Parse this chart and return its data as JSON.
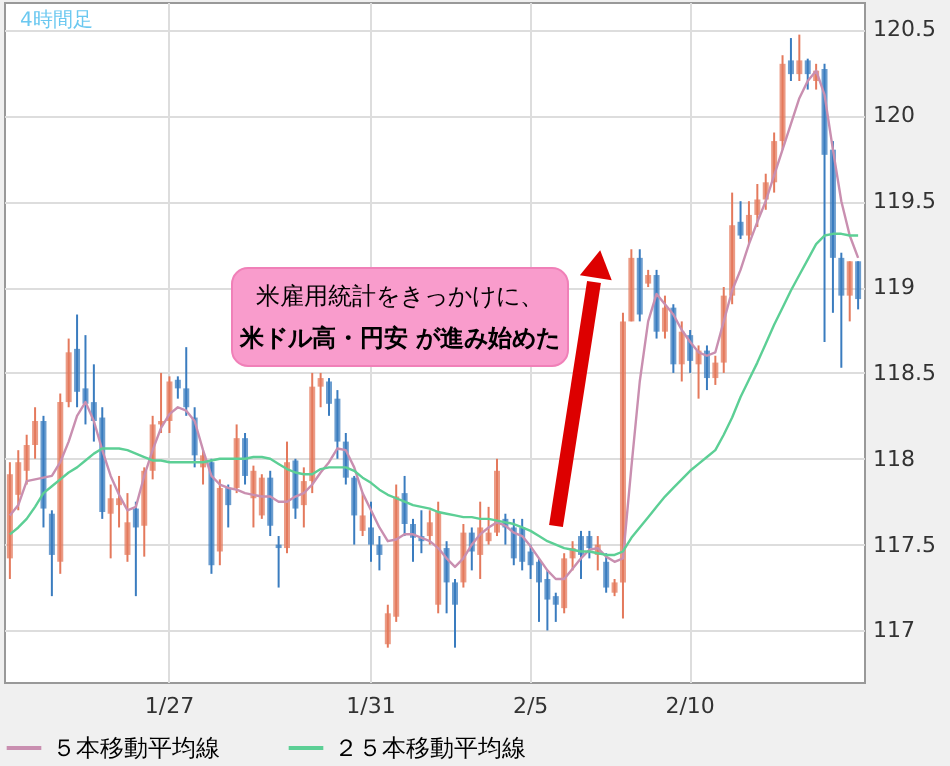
{
  "chart_data": {
    "type": "candlestick",
    "title": "4時間足",
    "categories": [
      null,
      null,
      null,
      null,
      null,
      null,
      null,
      null,
      null,
      null,
      null,
      null,
      null,
      null,
      null,
      null,
      null,
      null,
      null,
      "1/27",
      null,
      null,
      null,
      null,
      null,
      null,
      null,
      null,
      null,
      null,
      null,
      null,
      null,
      null,
      null,
      null,
      null,
      null,
      null,
      null,
      null,
      null,
      null,
      "1/31",
      null,
      null,
      null,
      null,
      null,
      null,
      null,
      null,
      null,
      null,
      null,
      null,
      null,
      null,
      null,
      null,
      null,
      null,
      "2/5",
      null,
      null,
      null,
      null,
      null,
      null,
      null,
      null,
      null,
      null,
      null,
      null,
      null,
      null,
      null,
      null,
      null,
      null,
      "2/10",
      null,
      null,
      null,
      null,
      null,
      null,
      null,
      null,
      null,
      null,
      null,
      null,
      null,
      null,
      null,
      null,
      null,
      null,
      null,
      null
    ],
    "ohlc": [
      [
        117.42,
        117.98,
        117.3,
        117.91
      ],
      [
        117.79,
        118.05,
        117.7,
        117.98
      ],
      [
        117.93,
        118.14,
        117.85,
        118.08
      ],
      [
        118.08,
        118.3,
        118.0,
        118.22
      ],
      [
        118.22,
        118.25,
        117.6,
        117.71
      ],
      [
        117.68,
        117.7,
        117.2,
        117.44
      ],
      [
        117.4,
        118.38,
        117.33,
        118.33
      ],
      [
        118.33,
        118.7,
        118.3,
        118.62
      ],
      [
        118.64,
        118.84,
        118.3,
        118.39
      ],
      [
        118.41,
        118.72,
        118.2,
        118.32
      ],
      [
        118.33,
        118.55,
        118.1,
        118.22
      ],
      [
        118.24,
        118.3,
        117.65,
        117.69
      ],
      [
        117.68,
        117.85,
        117.42,
        117.77
      ],
      [
        117.73,
        117.9,
        117.6,
        117.77
      ],
      [
        117.44,
        117.8,
        117.4,
        117.63
      ],
      [
        117.71,
        117.75,
        117.2,
        117.6
      ],
      [
        117.61,
        117.95,
        117.43,
        117.93
      ],
      [
        117.93,
        118.25,
        117.88,
        118.2
      ],
      [
        118.2,
        118.5,
        118.15,
        118.22
      ],
      [
        118.22,
        118.48,
        118.15,
        118.45
      ],
      [
        118.46,
        118.48,
        118.35,
        118.41
      ],
      [
        118.41,
        118.65,
        118.25,
        118.3
      ],
      [
        118.24,
        118.3,
        117.95,
        118.02
      ],
      [
        117.95,
        118.05,
        117.85,
        118.02
      ],
      [
        117.98,
        118.0,
        117.33,
        117.38
      ],
      [
        117.46,
        117.88,
        117.38,
        117.83
      ],
      [
        117.83,
        117.85,
        117.6,
        117.73
      ],
      [
        117.83,
        118.2,
        117.8,
        118.12
      ],
      [
        118.12,
        118.15,
        117.85,
        117.9
      ],
      [
        117.77,
        117.96,
        117.6,
        117.93
      ],
      [
        117.67,
        117.91,
        117.65,
        117.89
      ],
      [
        117.89,
        117.93,
        117.55,
        117.61
      ],
      [
        117.5,
        117.55,
        117.25,
        117.48
      ],
      [
        117.48,
        118.1,
        117.45,
        117.98
      ],
      [
        117.99,
        118.0,
        117.65,
        117.71
      ],
      [
        117.73,
        117.95,
        117.6,
        117.87
      ],
      [
        117.87,
        118.5,
        117.8,
        118.42
      ],
      [
        118.42,
        118.5,
        118.3,
        118.47
      ],
      [
        118.45,
        118.47,
        118.25,
        118.32
      ],
      [
        118.35,
        118.4,
        118.0,
        118.1
      ],
      [
        118.1,
        118.15,
        117.85,
        117.89
      ],
      [
        117.89,
        117.9,
        117.5,
        117.67
      ],
      [
        117.58,
        117.8,
        117.55,
        117.67
      ],
      [
        117.6,
        117.75,
        117.4,
        117.5
      ],
      [
        117.5,
        117.55,
        117.35,
        117.44
      ],
      [
        116.92,
        117.15,
        116.9,
        117.1
      ],
      [
        117.08,
        117.85,
        117.05,
        117.78
      ],
      [
        117.8,
        117.9,
        117.55,
        117.62
      ],
      [
        117.62,
        117.65,
        117.4,
        117.54
      ],
      [
        117.55,
        117.7,
        117.45,
        117.52
      ],
      [
        117.55,
        117.7,
        117.5,
        117.63
      ],
      [
        117.15,
        117.75,
        117.1,
        117.69
      ],
      [
        117.48,
        117.52,
        117.1,
        117.28
      ],
      [
        117.28,
        117.3,
        116.9,
        117.15
      ],
      [
        117.28,
        117.62,
        117.25,
        117.57
      ],
      [
        117.57,
        117.6,
        117.35,
        117.46
      ],
      [
        117.44,
        117.75,
        117.3,
        117.6
      ],
      [
        117.52,
        117.72,
        117.5,
        117.57
      ],
      [
        117.57,
        118.0,
        117.55,
        117.93
      ],
      [
        117.65,
        117.68,
        117.5,
        117.6
      ],
      [
        117.6,
        117.65,
        117.38,
        117.42
      ],
      [
        117.6,
        117.65,
        117.35,
        117.4
      ],
      [
        117.46,
        117.5,
        117.3,
        117.38
      ],
      [
        117.4,
        117.42,
        117.05,
        117.28
      ],
      [
        117.3,
        117.35,
        117.0,
        117.18
      ],
      [
        117.2,
        117.22,
        117.05,
        117.15
      ],
      [
        117.13,
        117.45,
        117.1,
        117.42
      ],
      [
        117.42,
        117.52,
        117.35,
        117.48
      ],
      [
        117.55,
        117.58,
        117.3,
        117.44
      ],
      [
        117.55,
        117.58,
        117.42,
        117.48
      ],
      [
        117.44,
        117.55,
        117.35,
        117.5
      ],
      [
        117.4,
        117.45,
        117.22,
        117.25
      ],
      [
        117.22,
        117.3,
        117.2,
        117.28
      ],
      [
        117.28,
        118.85,
        117.07,
        118.8
      ],
      [
        118.8,
        119.22,
        118.8,
        119.17
      ],
      [
        119.17,
        119.22,
        118.8,
        118.84
      ],
      [
        119.02,
        119.1,
        119.0,
        119.07
      ],
      [
        119.07,
        119.1,
        118.7,
        118.74
      ],
      [
        118.74,
        118.95,
        118.7,
        118.88
      ],
      [
        118.88,
        118.9,
        118.5,
        118.55
      ],
      [
        118.55,
        118.8,
        118.45,
        118.74
      ],
      [
        118.72,
        118.75,
        118.5,
        118.57
      ],
      [
        118.55,
        118.66,
        118.35,
        118.63
      ],
      [
        118.63,
        118.66,
        118.4,
        118.47
      ],
      [
        118.47,
        118.6,
        118.43,
        118.56
      ],
      [
        118.56,
        119.0,
        118.5,
        118.95
      ],
      [
        118.95,
        119.55,
        118.9,
        119.36
      ],
      [
        119.38,
        119.5,
        119.28,
        119.3
      ],
      [
        119.3,
        119.5,
        119.25,
        119.42
      ],
      [
        119.42,
        119.6,
        119.35,
        119.51
      ],
      [
        119.51,
        119.66,
        119.45,
        119.61
      ],
      [
        119.61,
        119.9,
        119.55,
        119.85
      ],
      [
        119.85,
        120.35,
        119.8,
        120.3
      ],
      [
        120.32,
        120.45,
        120.2,
        120.24
      ],
      [
        120.24,
        120.47,
        120.2,
        120.32
      ],
      [
        120.32,
        120.33,
        120.15,
        120.24
      ],
      [
        120.2,
        120.3,
        120.15,
        120.26
      ],
      [
        120.27,
        120.3,
        118.68,
        119.77
      ],
      [
        119.8,
        119.85,
        118.85,
        119.17
      ],
      [
        119.17,
        119.2,
        118.53,
        118.95
      ],
      [
        118.95,
        119.15,
        118.8,
        119.15
      ],
      [
        119.15,
        119.15,
        118.87,
        118.93
      ]
    ],
    "colors": [
      "#e4795c",
      "#e4795c",
      "#e4795c",
      "#e4795c",
      "#3a7cbf",
      "#3a7cbf",
      "#e4795c",
      "#e4795c",
      "#3a7cbf",
      "#3a7cbf",
      "#3a7cbf",
      "#3a7cbf",
      "#e4795c",
      "#e4795c",
      "#e4795c",
      "#3a7cbf",
      "#e4795c",
      "#e4795c",
      "#e4795c",
      "#e4795c",
      "#3a7cbf",
      "#3a7cbf",
      "#3a7cbf",
      "#e4795c",
      "#3a7cbf",
      "#e4795c",
      "#3a7cbf",
      "#e4795c",
      "#3a7cbf",
      "#e4795c",
      "#e4795c",
      "#3a7cbf",
      "#3a7cbf",
      "#e4795c",
      "#3a7cbf",
      "#e4795c",
      "#e4795c",
      "#e4795c",
      "#3a7cbf",
      "#3a7cbf",
      "#3a7cbf",
      "#3a7cbf",
      "#e4795c",
      "#3a7cbf",
      "#3a7cbf",
      "#e4795c",
      "#e4795c",
      "#3a7cbf",
      "#3a7cbf",
      "#3a7cbf",
      "#e4795c",
      "#e4795c",
      "#3a7cbf",
      "#3a7cbf",
      "#e4795c",
      "#3a7cbf",
      "#e4795c",
      "#e4795c",
      "#e4795c",
      "#3a7cbf",
      "#3a7cbf",
      "#3a7cbf",
      "#3a7cbf",
      "#3a7cbf",
      "#3a7cbf",
      "#3a7cbf",
      "#e4795c",
      "#e4795c",
      "#3a7cbf",
      "#3a7cbf",
      "#e4795c",
      "#3a7cbf",
      "#e4795c",
      "#e4795c",
      "#e4795c",
      "#3a7cbf",
      "#e4795c",
      "#3a7cbf",
      "#e4795c",
      "#3a7cbf",
      "#e4795c",
      "#3a7cbf",
      "#e4795c",
      "#3a7cbf",
      "#e4795c",
      "#e4795c",
      "#e4795c",
      "#3a7cbf",
      "#e4795c",
      "#e4795c",
      "#e4795c",
      "#e4795c",
      "#e4795c",
      "#3a7cbf",
      "#e4795c",
      "#3a7cbf",
      "#e4795c",
      "#3a7cbf",
      "#3a7cbf",
      "#3a7cbf",
      "#e4795c",
      "#3a7cbf"
    ],
    "series": [
      {
        "type": "line",
        "name": "５本移動平均線",
        "color": "#c98fb0",
        "values": [
          117.67,
          117.73,
          117.87,
          117.88,
          117.89,
          117.9,
          117.98,
          118.1,
          118.25,
          118.33,
          118.22,
          118.05,
          117.9,
          117.79,
          117.7,
          117.72,
          117.9,
          118.05,
          118.18,
          118.26,
          118.3,
          118.28,
          118.22,
          118.05,
          117.9,
          117.85,
          117.83,
          117.82,
          117.8,
          117.79,
          117.78,
          117.78,
          117.75,
          117.75,
          117.78,
          117.8,
          117.85,
          117.92,
          117.98,
          118.06,
          118.05,
          117.95,
          117.8,
          117.7,
          117.6,
          117.52,
          117.53,
          117.56,
          117.56,
          117.54,
          117.52,
          117.48,
          117.42,
          117.37,
          117.42,
          117.5,
          117.56,
          117.6,
          117.63,
          117.61,
          117.57,
          117.55,
          117.49,
          117.42,
          117.35,
          117.3,
          117.3,
          117.36,
          117.42,
          117.47,
          117.48,
          117.43,
          117.4,
          117.42,
          117.95,
          118.45,
          118.8,
          118.96,
          118.9,
          118.84,
          118.75,
          118.68,
          118.62,
          118.6,
          118.62,
          118.8,
          118.98,
          119.1,
          119.25,
          119.38,
          119.5,
          119.65,
          119.8,
          119.95,
          120.1,
          120.2,
          120.26,
          120.12,
          119.8,
          119.5,
          119.3,
          119.17
        ]
      },
      {
        "type": "line",
        "name": "２５本移動平均線",
        "color": "#5ccf95",
        "values": [
          117.56,
          117.6,
          117.65,
          117.72,
          117.8,
          117.84,
          117.88,
          117.92,
          117.95,
          117.99,
          118.03,
          118.06,
          118.06,
          118.06,
          118.05,
          118.03,
          118.01,
          117.99,
          117.99,
          117.98,
          117.98,
          117.98,
          117.98,
          117.98,
          117.99,
          118.0,
          118.0,
          118.0,
          118.0,
          118.01,
          118.01,
          118.0,
          117.97,
          117.94,
          117.92,
          117.91,
          117.91,
          117.94,
          117.95,
          117.95,
          117.95,
          117.93,
          117.89,
          117.86,
          117.82,
          117.79,
          117.77,
          117.75,
          117.73,
          117.72,
          117.71,
          117.69,
          117.68,
          117.67,
          117.66,
          117.66,
          117.65,
          117.65,
          117.64,
          117.63,
          117.62,
          117.6,
          117.58,
          117.55,
          117.52,
          117.5,
          117.48,
          117.47,
          117.46,
          117.46,
          117.45,
          117.44,
          117.44,
          117.46,
          117.54,
          117.6,
          117.66,
          117.72,
          117.78,
          117.83,
          117.88,
          117.93,
          117.97,
          118.01,
          118.05,
          118.14,
          118.24,
          118.36,
          118.46,
          118.56,
          118.67,
          118.78,
          118.88,
          118.98,
          119.07,
          119.16,
          119.25,
          119.3,
          119.31,
          119.31,
          119.3,
          119.3
        ]
      }
    ],
    "ylim": [
      116.7,
      120.66
    ],
    "yticks": [
      117,
      117.5,
      118,
      118.5,
      119,
      119.5,
      120,
      120.5
    ],
    "grid": true,
    "legend": "bottom",
    "annotations": [
      "米雇用統計をきっかけに、",
      "米ドル高・円安 が進み始めた"
    ]
  }
}
